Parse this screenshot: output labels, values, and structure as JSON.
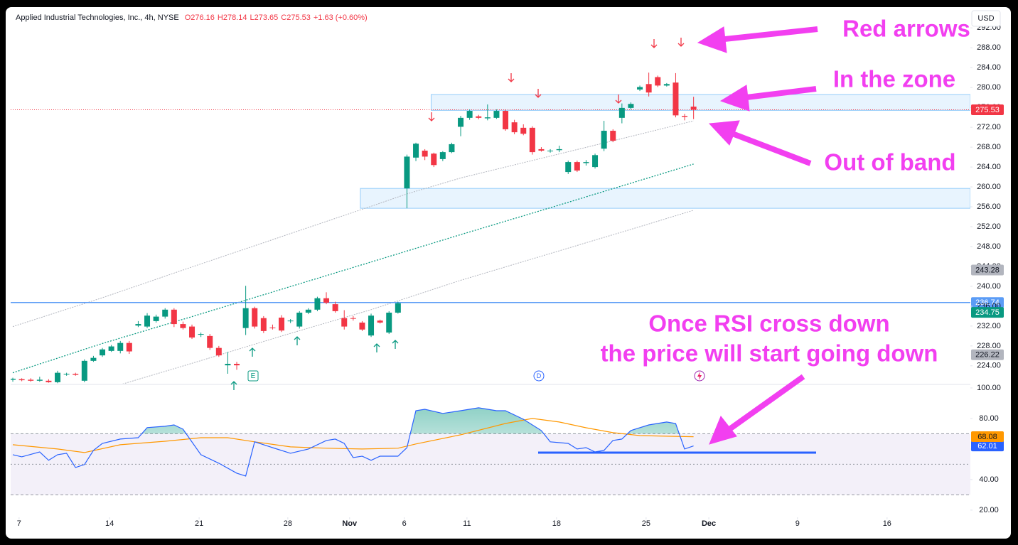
{
  "header": {
    "title": "Applied Industrial Technologies, Inc., 4h, NYSE",
    "ohlc": [
      "O276.16",
      "H278.14",
      "L273.65",
      "C275.53",
      "+1.63 (+0.60%)"
    ],
    "currency": "USD"
  },
  "markers": [
    "E",
    "D"
  ],
  "annotations": [
    "Red arrows",
    "In the zone",
    "Out of band",
    "Once RSI cross down",
    "the price will start going down"
  ],
  "chart_data": [
    {
      "type": "candlestick",
      "up_color": "#089981",
      "down_color": "#f23645",
      "xlim": [
        -0.24,
        106.9
      ],
      "ylim": [
        220.4,
        295.9
      ],
      "yticks": [
        {
          "value": 224,
          "label": "224.00"
        },
        {
          "value": 228,
          "label": "228.00"
        },
        {
          "value": 232,
          "label": "232.00"
        },
        {
          "value": 236,
          "label": "236.00"
        },
        {
          "value": 240,
          "label": "240.00"
        },
        {
          "value": 244,
          "label": "244.00"
        },
        {
          "value": 248,
          "label": "248.00"
        },
        {
          "value": 252,
          "label": "252.00"
        },
        {
          "value": 256,
          "label": "256.00"
        },
        {
          "value": 260,
          "label": "260.00"
        },
        {
          "value": 264,
          "label": "264.00"
        },
        {
          "value": 268,
          "label": "268.00"
        },
        {
          "value": 272,
          "label": "272.00"
        },
        {
          "value": 276,
          "label": "276.00"
        },
        {
          "value": 280,
          "label": "280.00"
        },
        {
          "value": 284,
          "label": "284.00"
        },
        {
          "value": 288,
          "label": "288.00"
        },
        {
          "value": 292,
          "label": "292.00"
        }
      ],
      "xticks": [
        {
          "value": 0.7,
          "label": "7"
        },
        {
          "value": 10.8,
          "label": "14"
        },
        {
          "value": 20.8,
          "label": "21"
        },
        {
          "value": 30.7,
          "label": "28"
        },
        {
          "value": 37.6,
          "label": "Nov"
        },
        {
          "value": 43.7,
          "label": "6"
        },
        {
          "value": 50.7,
          "label": "11"
        },
        {
          "value": 60.7,
          "label": "18"
        },
        {
          "value": 70.7,
          "label": "25"
        },
        {
          "value": 77.7,
          "label": "Dec"
        },
        {
          "value": 87.6,
          "label": "9"
        },
        {
          "value": 97.6,
          "label": "16"
        }
      ],
      "open": [
        221.2,
        221.3,
        221.2,
        221.0,
        221.0,
        220.7,
        222.3,
        222.4,
        221.0,
        225.0,
        226.1,
        227.0,
        227.0,
        228.6,
        232.1,
        231.9,
        233.0,
        233.9,
        235.3,
        232.4,
        231.9,
        230.3,
        230.0,
        227.6,
        224.1,
        224.4,
        231.6,
        235.6,
        233.6,
        231.7,
        233.7,
        233.0,
        231.9,
        234.7,
        235.3,
        237.6,
        236.4,
        233.6,
        233.6,
        232.7,
        230.1,
        233.1,
        230.7,
        234.7,
        259.7,
        265.9,
        267.3,
        266.7,
        265.6,
        267.0,
        272.1,
        273.9,
        274.2,
        273.8,
        273.9,
        275.3,
        273.0,
        271.9,
        271.9,
        267.6,
        267.2,
        267.4,
        263.0,
        265.0,
        264.8,
        264.0,
        267.7,
        271.3,
        273.9,
        275.9,
        279.6,
        280.7,
        282.1,
        280.4,
        281.0,
        274.3,
        276.16
      ],
      "high": [
        221.6,
        221.5,
        221.5,
        221.8,
        221.3,
        223.0,
        222.6,
        222.6,
        225.3,
        226.0,
        227.6,
        228.2,
        229.0,
        229.0,
        233.0,
        234.6,
        234.3,
        235.6,
        235.6,
        232.9,
        232.3,
        230.7,
        230.4,
        228.0,
        226.8,
        224.8,
        240.1,
        235.9,
        234.0,
        232.3,
        234.2,
        233.4,
        235.0,
        235.6,
        237.9,
        238.8,
        236.9,
        235.2,
        234.0,
        233.0,
        234.5,
        233.3,
        235.0,
        236.9,
        266.5,
        268.9,
        267.6,
        266.9,
        267.2,
        268.9,
        274.3,
        275.6,
        274.5,
        276.6,
        275.6,
        275.6,
        273.5,
        272.6,
        272.2,
        268.0,
        267.6,
        268.3,
        265.3,
        265.3,
        265.4,
        266.7,
        273.3,
        271.6,
        276.8,
        277.0,
        280.4,
        283.0,
        282.4,
        280.9,
        282.9,
        274.7,
        278.14
      ],
      "low": [
        220.8,
        220.9,
        220.8,
        220.8,
        220.6,
        220.5,
        222.0,
        222.0,
        220.7,
        224.8,
        225.8,
        226.8,
        226.5,
        226.4,
        231.8,
        231.6,
        232.7,
        233.5,
        231.8,
        231.3,
        229.4,
        229.8,
        227.2,
        225.8,
        222.4,
        223.2,
        230.2,
        231.5,
        230.6,
        231.3,
        230.8,
        232.6,
        231.5,
        234.4,
        235.0,
        236.4,
        234.7,
        231.3,
        233.1,
        231.0,
        229.8,
        232.5,
        230.4,
        234.5,
        255.7,
        265.2,
        265.4,
        264.0,
        265.2,
        266.8,
        270.2,
        273.5,
        273.6,
        273.4,
        273.7,
        271.3,
        270.6,
        270.4,
        266.5,
        267.1,
        266.9,
        267.0,
        262.6,
        263.0,
        264.3,
        263.7,
        267.2,
        269.0,
        272.8,
        275.6,
        279.3,
        278.2,
        280.1,
        280.2,
        274.0,
        273.4,
        273.65
      ],
      "close": [
        221.4,
        221.1,
        221.0,
        221.2,
        220.7,
        222.6,
        222.4,
        222.2,
        225.0,
        225.6,
        227.3,
        227.9,
        228.6,
        226.9,
        232.4,
        234.1,
        233.9,
        235.3,
        232.4,
        231.6,
        229.7,
        230.4,
        227.6,
        226.1,
        224.4,
        224.1,
        235.6,
        231.9,
        231.0,
        231.6,
        231.1,
        233.1,
        234.7,
        235.3,
        237.6,
        236.7,
        235.0,
        231.9,
        233.5,
        231.3,
        234.1,
        232.7,
        234.7,
        236.6,
        266.1,
        268.7,
        266.1,
        264.4,
        267.0,
        268.6,
        273.9,
        275.3,
        273.9,
        274.0,
        275.3,
        271.6,
        271.0,
        270.7,
        267.0,
        267.3,
        267.3,
        267.6,
        265.0,
        263.3,
        265.0,
        266.4,
        271.3,
        269.3,
        275.9,
        276.7,
        280.1,
        279.0,
        280.4,
        280.7,
        274.4,
        274.1,
        275.53
      ],
      "bands": [
        {
          "color": "#b2b5be",
          "x": [
            0,
            10,
            20,
            30,
            40,
            44,
            50,
            60,
            70,
            76
          ],
          "values": [
            231.9,
            237.7,
            243.9,
            250.0,
            256.1,
            258.6,
            261.8,
            266.2,
            270.6,
            273.3
          ]
        },
        {
          "color": "#089981",
          "x": [
            0,
            10,
            20,
            30,
            40,
            50,
            60,
            70,
            76
          ],
          "values": [
            222.6,
            228.5,
            233.9,
            239.4,
            244.9,
            250.4,
            255.8,
            261.3,
            264.6
          ]
        },
        {
          "color": "#b2b5be",
          "x": [
            12,
            20,
            30,
            40,
            50,
            60,
            70,
            76
          ],
          "values": [
            220.2,
            224.5,
            230.0,
            235.3,
            241.2,
            246.6,
            252.0,
            255.3
          ]
        }
      ],
      "zones": [
        {
          "from": 275.4,
          "to": 278.6,
          "start": 46.7
        },
        {
          "from": 255.7,
          "to": 259.7,
          "start": 38.8
        }
      ],
      "levels": [
        {
          "value": 236.74,
          "color": "#5b9cf6"
        }
      ],
      "price_labels": [
        {
          "value": 243.28,
          "color": "#b2b5be"
        },
        {
          "value": 234.75,
          "color": "#089981"
        },
        {
          "value": 226.22,
          "color": "#b2b5be"
        }
      ]
    },
    {
      "type": "line",
      "xlim": [
        -0.24,
        106.9
      ],
      "ylim": [
        15.3,
        102.3
      ],
      "yticks": [
        {
          "value": 20,
          "label": "20.00"
        },
        {
          "value": 40,
          "label": "40.00"
        },
        {
          "value": 60,
          "label": "60.00"
        },
        {
          "value": 80,
          "label": "80.00"
        },
        {
          "value": 100,
          "label": "100.00"
        }
      ],
      "hlines": [
        70,
        50,
        30
      ],
      "band": [
        30,
        70
      ],
      "series": [
        {
          "color": "#2962ff",
          "x": [
            0,
            1,
            3,
            4,
            5,
            6,
            7,
            8,
            9,
            10,
            12,
            14,
            15,
            17,
            18,
            19,
            21,
            23,
            25,
            26,
            27,
            29,
            31,
            33,
            35,
            36,
            37,
            38,
            39,
            40,
            41,
            43,
            44,
            45,
            46,
            48,
            50,
            52,
            54,
            55,
            57,
            59,
            60,
            62,
            63,
            64,
            65,
            66,
            67,
            68,
            69,
            71,
            73,
            74,
            75,
            76
          ],
          "values": [
            56.3,
            54.9,
            58.1,
            52.6,
            56.3,
            57.2,
            47.9,
            49.8,
            59.1,
            63.7,
            66.5,
            67.4,
            74,
            74.9,
            75.8,
            73,
            56.3,
            50.7,
            44.2,
            42.3,
            64.7,
            60.9,
            57.2,
            60,
            65.6,
            66.5,
            63.7,
            54.4,
            55.3,
            52.6,
            55.3,
            55.3,
            60.9,
            85.1,
            86,
            83.3,
            85.1,
            87,
            85.1,
            85.1,
            79.5,
            72.1,
            64.7,
            63.7,
            60,
            60.9,
            58.1,
            59.1,
            65.6,
            66.5,
            72.1,
            75.8,
            77.7,
            76.7,
            60,
            62.01
          ]
        },
        {
          "color": "#ff9800",
          "x": [
            0,
            5,
            8,
            12,
            17,
            21,
            24,
            27,
            31,
            35,
            39,
            43,
            45,
            50,
            55,
            58,
            61,
            64,
            67,
            70,
            73,
            76
          ],
          "values": [
            62.8,
            60,
            57.7,
            62.8,
            65.1,
            67.4,
            67.4,
            64.7,
            61.4,
            60.5,
            60,
            60.5,
            63.3,
            69.3,
            76.7,
            80,
            77.7,
            73.9,
            70.7,
            68.8,
            68.4,
            68.08
          ]
        }
      ]
    }
  ]
}
